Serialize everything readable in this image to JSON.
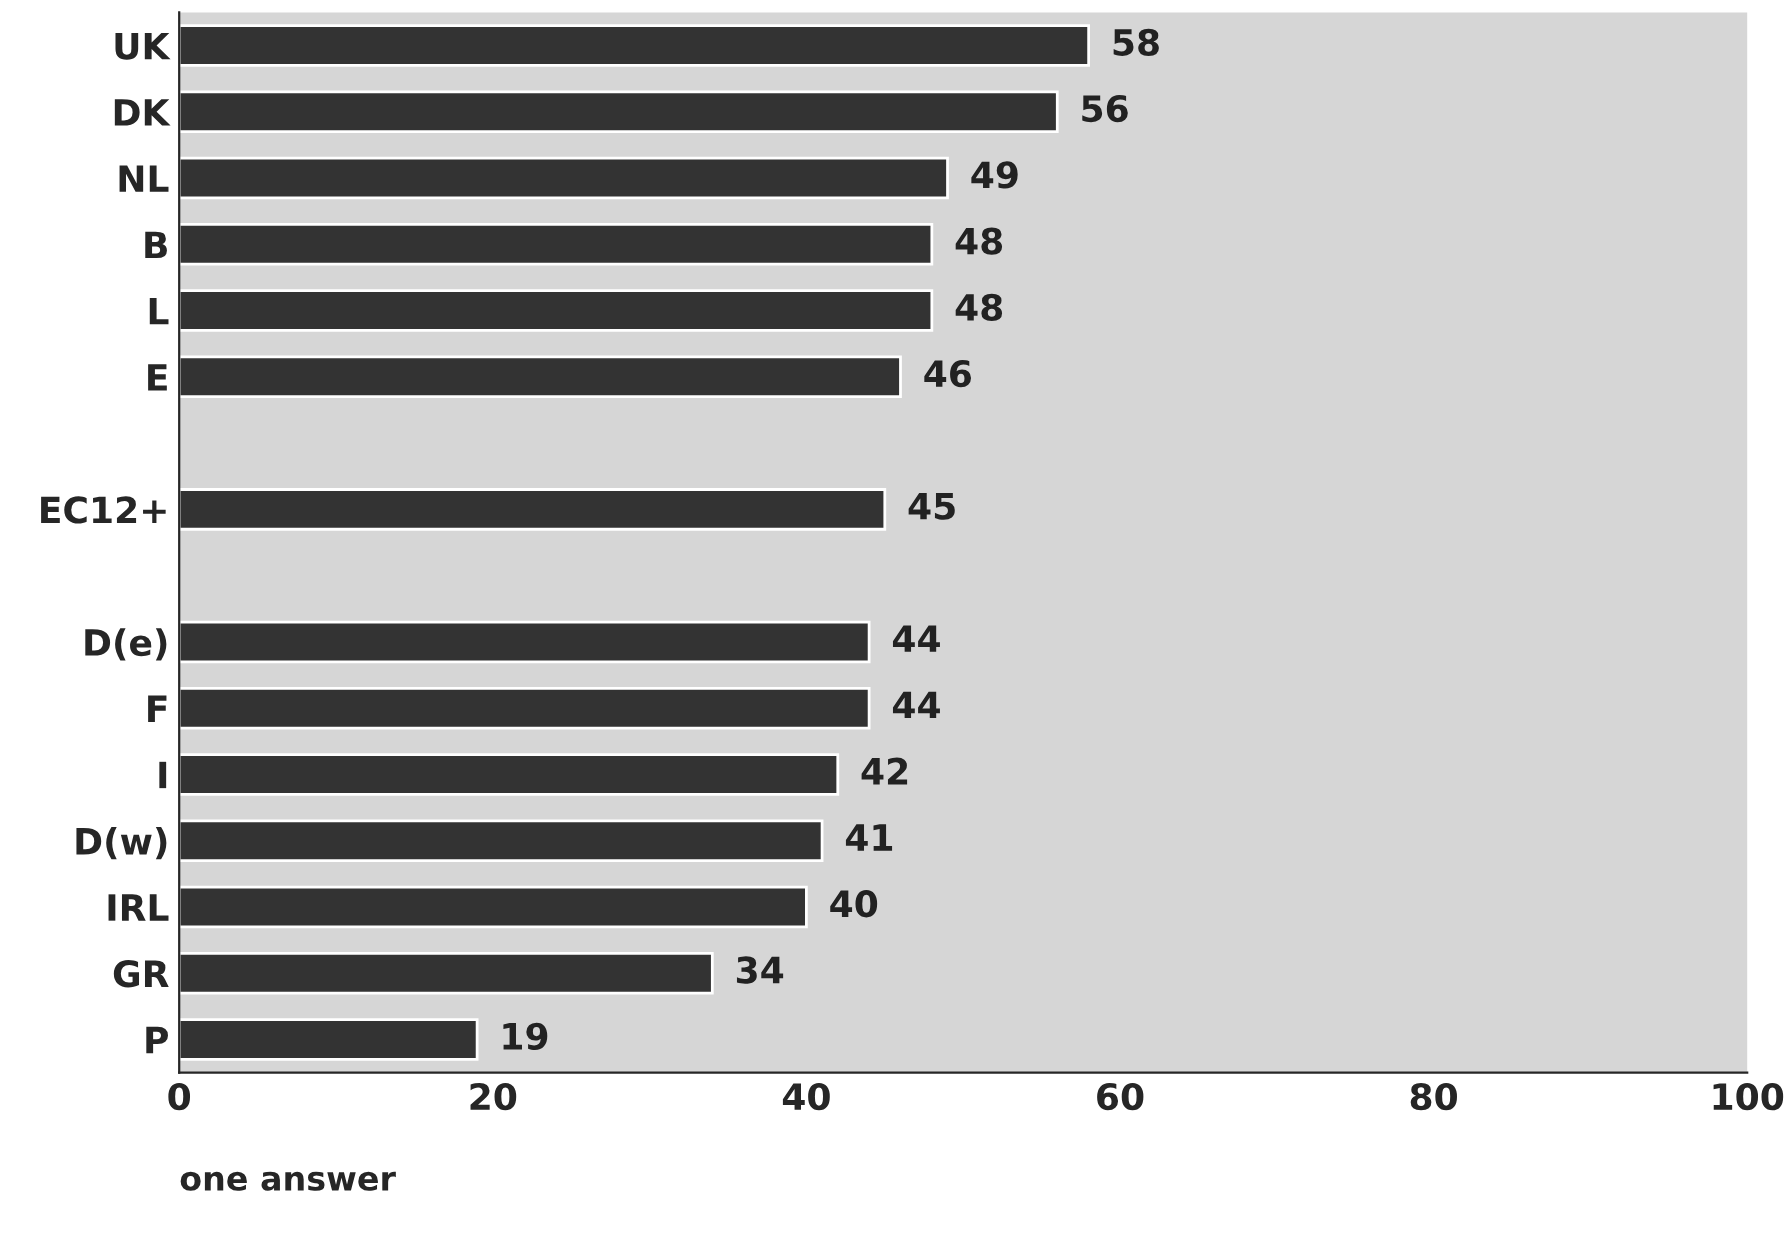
{
  "chart_data": {
    "type": "bar",
    "orientation": "horizontal",
    "categories": [
      "UK",
      "DK",
      "NL",
      "B",
      "L",
      "E",
      null,
      "EC12+",
      null,
      "D(e)",
      "F",
      "I",
      "D(w)",
      "IRL",
      "GR",
      "P"
    ],
    "values": [
      58,
      56,
      49,
      48,
      48,
      46,
      null,
      45,
      null,
      44,
      44,
      42,
      41,
      40,
      34,
      19
    ],
    "color": "#333333",
    "xlim": [
      0,
      100
    ],
    "xticks": [
      0,
      20,
      40,
      60,
      80,
      100
    ],
    "data_labels": true,
    "grid": false,
    "annotations": [
      "one answer"
    ]
  }
}
